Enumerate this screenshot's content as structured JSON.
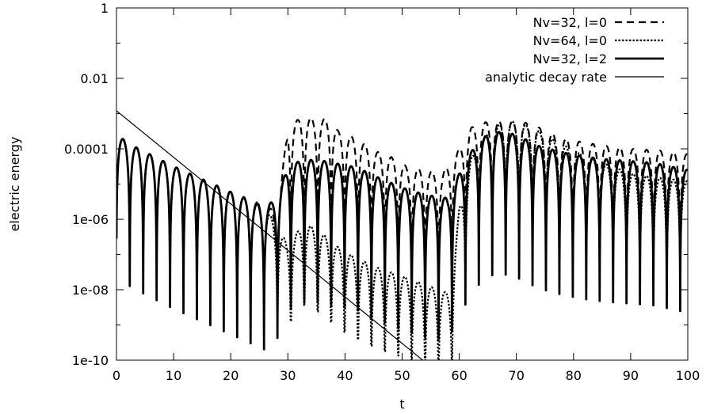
{
  "chart_data": {
    "type": "line",
    "title": "",
    "xlabel": "t",
    "ylabel": "electric energy",
    "xlim": [
      0,
      100
    ],
    "ylim": [
      1e-10,
      1
    ],
    "yscale": "log",
    "grid": false,
    "legend_position": "top-right",
    "x_ticks": [
      0,
      10,
      20,
      30,
      40,
      50,
      60,
      70,
      80,
      90,
      100
    ],
    "x_tick_labels": [
      "0",
      "10",
      "20",
      "30",
      "40",
      "50",
      "60",
      "70",
      "80",
      "90",
      "100"
    ],
    "y_ticks": [
      1e-10,
      1e-08,
      1e-06,
      0.0001,
      0.01,
      1
    ],
    "y_tick_labels": [
      "1e-10",
      "1e-08",
      "1e-06",
      "0.0001",
      "0.01",
      "1"
    ],
    "oscillation": {
      "period": 2.35,
      "phase": -1.2
    },
    "series": [
      {
        "name": "Nv=32, l=0",
        "dash": "dashed",
        "stroke_width": 2.2,
        "envelope": [
          [
            0,
            0.00025
          ],
          [
            3,
            0.00012
          ],
          [
            10,
            3.2e-05
          ],
          [
            20,
            6e-06
          ],
          [
            26,
            2.5e-06
          ],
          [
            28,
            1.6e-06
          ],
          [
            29,
            2e-05
          ],
          [
            30,
            0.00045
          ],
          [
            31,
            0.0006
          ],
          [
            33,
            0.0008
          ],
          [
            35,
            0.0007
          ],
          [
            37,
            0.0007
          ],
          [
            39,
            0.0003
          ],
          [
            42,
            0.0002
          ],
          [
            45,
            9e-05
          ],
          [
            48,
            6e-05
          ],
          [
            51,
            3e-05
          ],
          [
            54,
            2.5e-05
          ],
          [
            57,
            2e-05
          ],
          [
            60,
            0.0001
          ],
          [
            62,
            0.0004
          ],
          [
            65,
            0.0006
          ],
          [
            68,
            0.0006
          ],
          [
            71,
            0.0006
          ],
          [
            74,
            0.0004
          ],
          [
            78,
            0.0002
          ],
          [
            82,
            0.00015
          ],
          [
            86,
            0.00012
          ],
          [
            90,
            0.0001
          ],
          [
            95,
            9e-05
          ],
          [
            100,
            7e-05
          ]
        ],
        "dip_depth": 0.08
      },
      {
        "name": "Nv=64, l=0",
        "dash": "dotted",
        "stroke_width": 2.2,
        "envelope": [
          [
            0,
            0.00025
          ],
          [
            3,
            0.00012
          ],
          [
            10,
            3.2e-05
          ],
          [
            20,
            6e-06
          ],
          [
            26,
            2.5e-06
          ],
          [
            28,
            6e-07
          ],
          [
            30,
            2e-07
          ],
          [
            33,
            8e-07
          ],
          [
            36,
            4e-07
          ],
          [
            39,
            1.5e-07
          ],
          [
            42,
            8e-08
          ],
          [
            46,
            4e-08
          ],
          [
            50,
            2.5e-08
          ],
          [
            54,
            1.4e-08
          ],
          [
            57,
            9e-09
          ],
          [
            58.5,
            8e-09
          ],
          [
            60,
            2e-06
          ],
          [
            62,
            5e-05
          ],
          [
            64,
            0.0002
          ],
          [
            66,
            0.0004
          ],
          [
            68,
            0.0006
          ],
          [
            70,
            0.0006
          ],
          [
            73,
            0.0004
          ],
          [
            76,
            0.0002
          ],
          [
            80,
            9e-05
          ],
          [
            85,
            4e-05
          ],
          [
            90,
            2e-05
          ],
          [
            95,
            1.5e-05
          ],
          [
            100,
            1.2e-05
          ]
        ],
        "dip_depth": 0.25
      },
      {
        "name": "Nv=32, l=2",
        "dash": "solid",
        "stroke_width": 2.8,
        "envelope": [
          [
            0,
            0.00025
          ],
          [
            3,
            0.00012
          ],
          [
            10,
            3.2e-05
          ],
          [
            20,
            6e-06
          ],
          [
            26,
            2.2e-06
          ],
          [
            28,
            4e-06
          ],
          [
            30,
            3e-05
          ],
          [
            32,
            4.5e-05
          ],
          [
            35,
            5e-05
          ],
          [
            38,
            4e-05
          ],
          [
            42,
            3e-05
          ],
          [
            46,
            1.5e-05
          ],
          [
            50,
            8e-06
          ],
          [
            54,
            5e-06
          ],
          [
            58,
            4e-06
          ],
          [
            60,
            2e-05
          ],
          [
            62,
            8e-05
          ],
          [
            64,
            0.0002
          ],
          [
            66,
            0.0003
          ],
          [
            68,
            0.0003
          ],
          [
            70,
            0.00025
          ],
          [
            74,
            0.00012
          ],
          [
            78,
            8e-05
          ],
          [
            82,
            6e-05
          ],
          [
            86,
            5e-05
          ],
          [
            90,
            4.5e-05
          ],
          [
            94,
            4e-05
          ],
          [
            100,
            2.5e-05
          ]
        ],
        "dip_depth": 0.004
      },
      {
        "name": "analytic decay rate",
        "dash": "solid",
        "stroke_width": 1.2,
        "type": "line",
        "x": [
          0,
          53.6
        ],
        "y": [
          0.0012,
          1e-10
        ]
      }
    ]
  }
}
